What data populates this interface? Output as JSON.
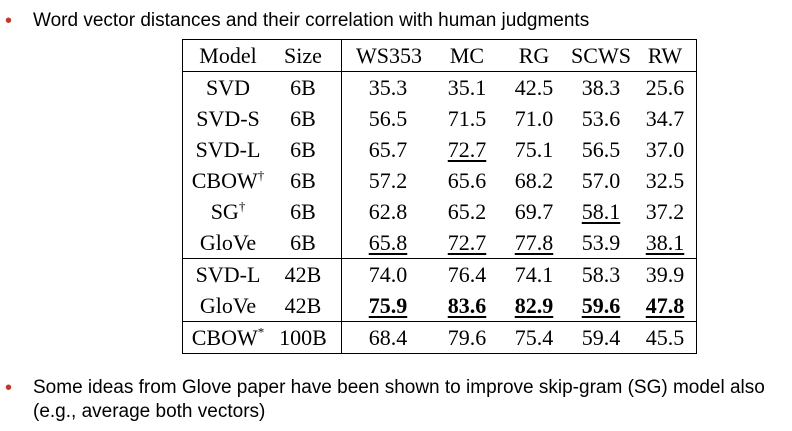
{
  "bullets": {
    "top": {
      "marker": "•",
      "text": "Word vector distances and their correlation with human judgments"
    },
    "bottom": {
      "marker": "•",
      "line1": "Some ideas from Glove paper have been shown to improve skip-gram (SG) model also",
      "line2": "(e.g., average both vectors)"
    }
  },
  "table": {
    "headers": {
      "model": "Model",
      "size": "Size",
      "ws353": "WS353",
      "mc": "MC",
      "rg": "RG",
      "scws": "SCWS",
      "rw": "RW"
    },
    "rows": [
      {
        "model": "SVD",
        "sup": "",
        "size": "6B",
        "ws353": "35.3",
        "mc": "35.1",
        "rg": "42.5",
        "scws": "38.3",
        "rw": "25.6"
      },
      {
        "model": "SVD-S",
        "sup": "",
        "size": "6B",
        "ws353": "56.5",
        "mc": "71.5",
        "rg": "71.0",
        "scws": "53.6",
        "rw": "34.7"
      },
      {
        "model": "SVD-L",
        "sup": "",
        "size": "6B",
        "ws353": "65.7",
        "mc": "72.7",
        "rg": "75.1",
        "scws": "56.5",
        "rw": "37.0"
      },
      {
        "model": "CBOW",
        "sup": "†",
        "size": "6B",
        "ws353": "57.2",
        "mc": "65.6",
        "rg": "68.2",
        "scws": "57.0",
        "rw": "32.5"
      },
      {
        "model": "SG",
        "sup": "†",
        "size": "6B",
        "ws353": "62.8",
        "mc": "65.2",
        "rg": "69.7",
        "scws": "58.1",
        "rw": "37.2"
      },
      {
        "model": "GloVe",
        "sup": "",
        "size": "6B",
        "ws353": "65.8",
        "mc": "72.7",
        "rg": "77.8",
        "scws": "53.9",
        "rw": "38.1"
      },
      {
        "model": "SVD-L",
        "sup": "",
        "size": "42B",
        "ws353": "74.0",
        "mc": "76.4",
        "rg": "74.1",
        "scws": "58.3",
        "rw": "39.9"
      },
      {
        "model": "GloVe",
        "sup": "",
        "size": "42B",
        "ws353": "75.9",
        "mc": "83.6",
        "rg": "82.9",
        "scws": "59.6",
        "rw": "47.8"
      },
      {
        "model": "CBOW",
        "sup": "*",
        "size": "100B",
        "ws353": "68.4",
        "mc": "79.6",
        "rg": "75.4",
        "scws": "59.4",
        "rw": "45.5"
      }
    ]
  }
}
